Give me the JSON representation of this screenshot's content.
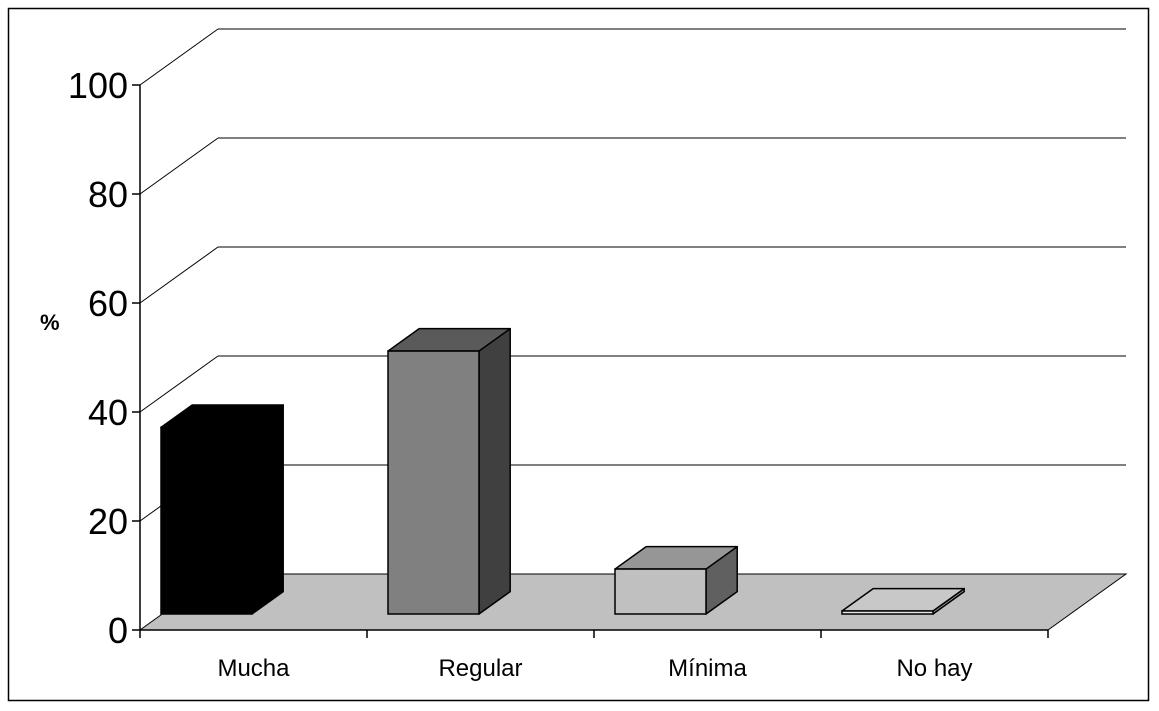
{
  "chart_data": {
    "type": "bar",
    "title": "",
    "xlabel": "",
    "ylabel": "%",
    "ylim": [
      0,
      100
    ],
    "yticks": [
      0,
      20,
      40,
      60,
      80,
      100
    ],
    "categories": [
      "Mucha",
      "Regular",
      "Mínima",
      "No hay"
    ],
    "values": [
      37,
      51,
      11,
      1
    ],
    "grid": true,
    "legend": "none",
    "style": "3d",
    "colors": {
      "front": [
        "#000000",
        "#808080",
        "#c0c0c0",
        "#e6e6e6"
      ],
      "top": [
        "#000000",
        "#5a5a5a",
        "#969696",
        "#c8c8c8"
      ],
      "side": [
        "#000000",
        "#404040",
        "#606060",
        "#999999"
      ],
      "floor": "#c0c0c0",
      "grid": "#000000"
    }
  }
}
